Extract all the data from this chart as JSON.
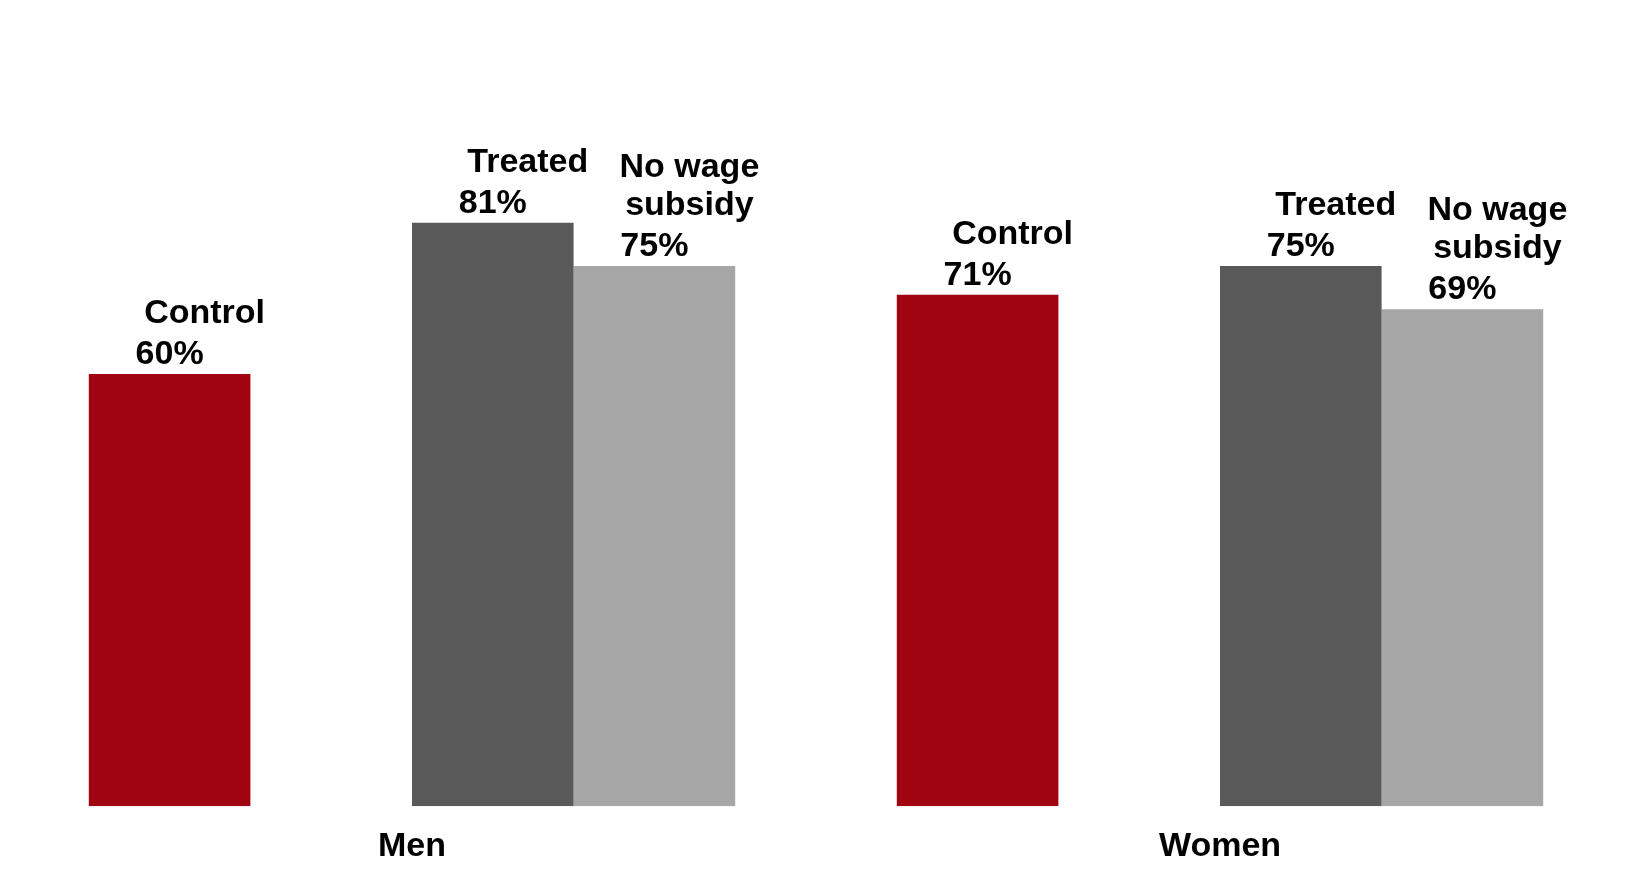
{
  "chart_data": {
    "type": "bar",
    "categories": [
      "Men",
      "Women"
    ],
    "series": [
      {
        "name": "Control",
        "color": "#a10512",
        "values": [
          60,
          71
        ],
        "value_labels": [
          "60%",
          "71%"
        ]
      },
      {
        "name": "Treated",
        "color": "#595959",
        "values": [
          81,
          75
        ],
        "value_labels": [
          "81%",
          "75%"
        ]
      },
      {
        "name": "No wage subsidy",
        "color": "#a6a6a6",
        "values": [
          75,
          69
        ],
        "value_labels": [
          "75%",
          "69%"
        ]
      }
    ]
  }
}
